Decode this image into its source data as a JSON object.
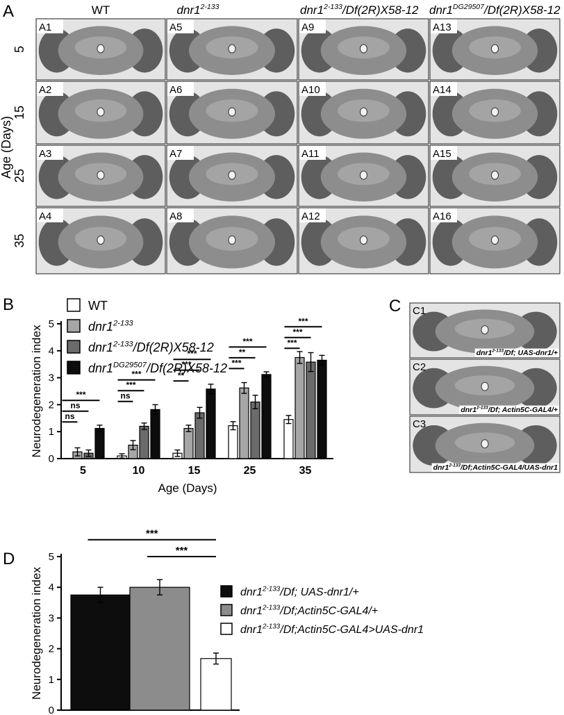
{
  "panel_a": {
    "letter": "A",
    "columns": [
      [
        {
          "text": "WT"
        }
      ],
      [
        {
          "text": "dnr1",
          "italic": true
        },
        {
          "text": "2-133",
          "sup": true,
          "italic": true
        }
      ],
      [
        {
          "text": "dnr1",
          "italic": true
        },
        {
          "text": "2-133",
          "sup": true,
          "italic": true
        },
        {
          "text": "/Df(2R)X58-12",
          "italic": true
        }
      ],
      [
        {
          "text": "dnr1",
          "italic": true
        },
        {
          "text": "DG29507",
          "sup": true,
          "italic": true
        },
        {
          "text": "/Df(2R)X58-12",
          "italic": true
        }
      ]
    ],
    "rows": [
      "5",
      "15",
      "25",
      "35"
    ],
    "row_axis_label": "Age (Days)",
    "tiles": [
      [
        "A1",
        "A5",
        "A9",
        "A13"
      ],
      [
        "A2",
        "A6",
        "A10",
        "A14"
      ],
      [
        "A3",
        "A7",
        "A11",
        "A15"
      ],
      [
        "A4",
        "A8",
        "A12",
        "A16"
      ]
    ]
  },
  "chart_data": [
    {
      "type": "bar",
      "panel": "B",
      "ylabel": "Neurodegeneration index",
      "xlabel": "Age (Days)",
      "categories": [
        "5",
        "10",
        "15",
        "25",
        "35"
      ],
      "ylim": [
        0,
        5
      ],
      "yticks": [
        0,
        1,
        2,
        3,
        4,
        5
      ],
      "series": [
        {
          "name": [
            {
              "text": "WT"
            }
          ],
          "color": "#ffffff",
          "values": [
            0,
            0.1,
            0.2,
            1.22,
            1.45
          ],
          "errors": [
            0,
            0.08,
            0.12,
            0.15,
            0.15
          ]
        },
        {
          "name": [
            {
              "text": "dnr1",
              "italic": true
            },
            {
              "text": "2-133",
              "sup": true,
              "italic": true
            }
          ],
          "color": "#a6a6a6",
          "values": [
            0.25,
            0.5,
            1.12,
            2.62,
            3.75
          ],
          "errors": [
            0.15,
            0.17,
            0.12,
            0.2,
            0.22
          ]
        },
        {
          "name": [
            {
              "text": "dnr1",
              "italic": true
            },
            {
              "text": "2-133",
              "sup": true,
              "italic": true
            },
            {
              "text": "/Df(2R)X58-12",
              "italic": true
            }
          ],
          "color": "#6b6b6b",
          "values": [
            0.2,
            1.2,
            1.7,
            2.1,
            3.58
          ],
          "errors": [
            0.12,
            0.12,
            0.2,
            0.25,
            0.35
          ]
        },
        {
          "name": [
            {
              "text": "dnr1",
              "italic": true
            },
            {
              "text": "DG29507",
              "sup": true,
              "italic": true
            },
            {
              "text": "/Df(2R)X58-12",
              "italic": true
            }
          ],
          "color": "#0d0d0d",
          "values": [
            1.12,
            1.82,
            2.58,
            3.12,
            3.65
          ],
          "errors": [
            0.12,
            0.18,
            0.18,
            0.1,
            0.18
          ]
        }
      ],
      "annotations": [
        {
          "category": 0,
          "from": 0,
          "to": 1,
          "label": "ns"
        },
        {
          "category": 0,
          "from": 0,
          "to": 2,
          "label": "ns"
        },
        {
          "category": 0,
          "from": 0,
          "to": 3,
          "label": "***"
        },
        {
          "category": 1,
          "from": 0,
          "to": 1,
          "label": "ns"
        },
        {
          "category": 1,
          "from": 0,
          "to": 2,
          "label": "***"
        },
        {
          "category": 1,
          "from": 0,
          "to": 3,
          "label": "***"
        },
        {
          "category": 2,
          "from": 0,
          "to": 1,
          "label": "**"
        },
        {
          "category": 2,
          "from": 0,
          "to": 2,
          "label": "***"
        },
        {
          "category": 2,
          "from": 0,
          "to": 3,
          "label": "***"
        },
        {
          "category": 3,
          "from": 0,
          "to": 1,
          "label": "***"
        },
        {
          "category": 3,
          "from": 0,
          "to": 2,
          "label": "**"
        },
        {
          "category": 3,
          "from": 0,
          "to": 3,
          "label": "***"
        },
        {
          "category": 4,
          "from": 0,
          "to": 1,
          "label": "***"
        },
        {
          "category": 4,
          "from": 0,
          "to": 2,
          "label": "***"
        },
        {
          "category": 4,
          "from": 0,
          "to": 3,
          "label": "***"
        }
      ]
    },
    {
      "type": "bar",
      "panel": "D",
      "ylabel": "Neurodegeneration index",
      "categories": [
        null,
        null,
        null
      ],
      "values": [
        3.75,
        4.0,
        1.68
      ],
      "errors": [
        0.25,
        0.25,
        0.18
      ],
      "colors": [
        "#0d0d0d",
        "#8c8c8c",
        "#ffffff"
      ],
      "legend": [
        [
          {
            "text": "dnr1",
            "italic": true
          },
          {
            "text": "2-133",
            "sup": true,
            "italic": true
          },
          {
            "text": "/Df; UAS-dnr1/+",
            "italic": true
          }
        ],
        [
          {
            "text": "dnr1",
            "italic": true
          },
          {
            "text": "2-133",
            "sup": true,
            "italic": true
          },
          {
            "text": "/Df;Actin5C-GAL4/+",
            "italic": true
          }
        ],
        [
          {
            "text": "dnr1",
            "italic": true
          },
          {
            "text": "2-133",
            "sup": true,
            "italic": true
          },
          {
            "text": "/Df;Actin5C-GAL4>UAS-dnr1",
            "italic": true
          }
        ]
      ],
      "ylim": [
        0,
        5
      ],
      "yticks": [
        0,
        1,
        2,
        3,
        4,
        5
      ],
      "annotations": [
        {
          "from": 1,
          "to": 2,
          "label": "***"
        },
        {
          "from": 0,
          "to": 2,
          "label": "***"
        }
      ]
    }
  ],
  "panel_c": {
    "letter": "C",
    "tiles": [
      {
        "id": "C1",
        "caption": [
          {
            "text": "dnr1"
          },
          {
            "text": "2-133",
            "sup": true
          },
          {
            "text": "/Df; UAS-dnr1/+"
          }
        ]
      },
      {
        "id": "C2",
        "caption": [
          {
            "text": "dnr1"
          },
          {
            "text": "2-133",
            "sup": true
          },
          {
            "text": "/Df; Actin5C-GAL4/+"
          }
        ]
      },
      {
        "id": "C3",
        "caption": [
          {
            "text": "dnr1"
          },
          {
            "text": "2-133",
            "sup": true
          },
          {
            "text": "/Df;Actin5C-GAL4/UAS-dnr1"
          }
        ]
      }
    ]
  }
}
